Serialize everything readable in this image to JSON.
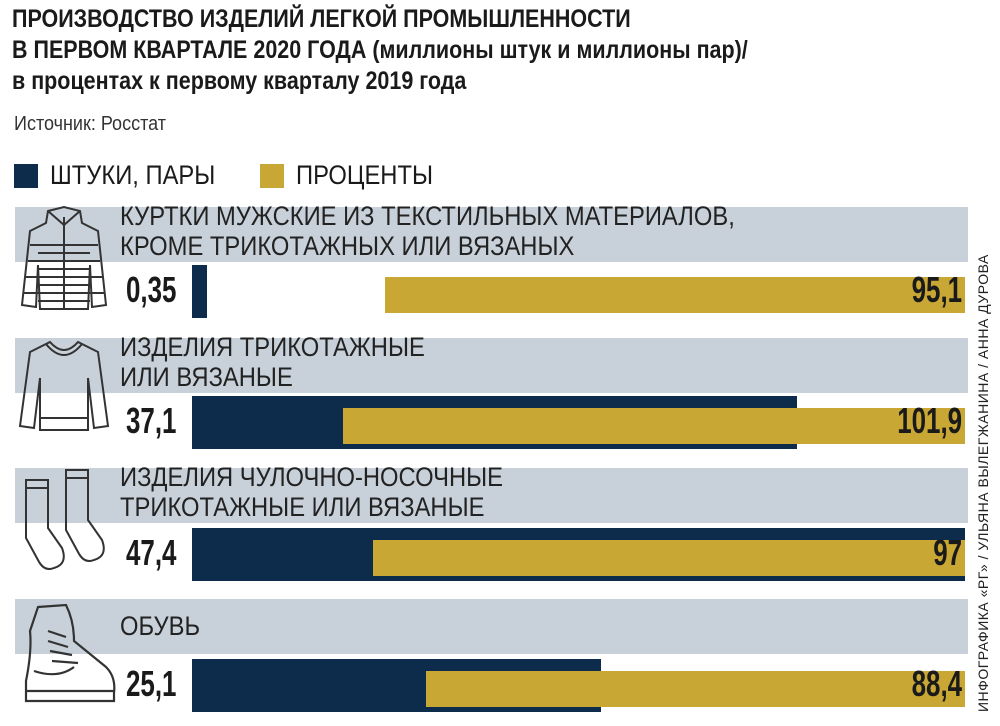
{
  "title_lines": [
    "ПРОИЗВОДСТВО ИЗДЕЛИЙ ЛЕГКОЙ ПРОМЫШЛЕННОСТИ",
    "В ПЕРВОМ КВАРТАЛЕ 2020 ГОДА (миллионы штук и миллионы пар)/",
    "в процентах к первому кварталу 2019 года"
  ],
  "source": "Источник: Росстат",
  "credit": "ИНФОГРАФИКА «РГ» / УЛЬЯНА ВЫЛЕГЖАНИНА / АННА ДУРОВА",
  "chart_data": {
    "type": "bar",
    "title": "ПРОИЗВОДСТВО ИЗДЕЛИЙ ЛЕГКОЙ ПРОМЫШЛЕННОСТИ В ПЕРВОМ КВАРТАЛЕ 2020 ГОДА (миллионы штук и миллионы пар)/ в процентах к первому кварталу 2019 года",
    "legend": [
      "ШТУКИ, ПАРЫ",
      "ПРОЦЕНТЫ"
    ],
    "colors": {
      "units": "#0d2b4b",
      "percent": "#c9a734",
      "band": "#c8d1da"
    },
    "categories": [
      {
        "lines": [
          "КУРТКИ МУЖСКИЕ ИЗ ТЕКСТИЛЬНЫХ МАТЕРИАЛОВ,",
          "КРОМЕ ТРИКОТАЖНЫХ ИЛИ ВЯЗАНЫХ"
        ],
        "icon": "jacket-icon"
      },
      {
        "lines": [
          "ИЗДЕЛИЯ ТРИКОТАЖНЫЕ",
          "ИЛИ ВЯЗАНЫЕ"
        ],
        "icon": "sweater-icon"
      },
      {
        "lines": [
          "ИЗДЕЛИЯ ЧУЛОЧНО-НОСОЧНЫЕ",
          "ТРИКОТАЖНЫЕ ИЛИ ВЯЗАНЫЕ"
        ],
        "icon": "socks-icon"
      },
      {
        "lines": [
          "ОБУВЬ"
        ],
        "icon": "boot-icon"
      }
    ],
    "series": [
      {
        "name": "ШТУКИ, ПАРЫ",
        "values": [
          0.35,
          37.1,
          47.4,
          25.1
        ],
        "labels": [
          "0,35",
          "37,1",
          "47,4",
          "25,1"
        ]
      },
      {
        "name": "ПРОЦЕНТЫ",
        "values": [
          95.1,
          101.9,
          97,
          88.4
        ],
        "labels": [
          "95,1",
          "101,9",
          "97",
          "88,4"
        ]
      }
    ]
  }
}
